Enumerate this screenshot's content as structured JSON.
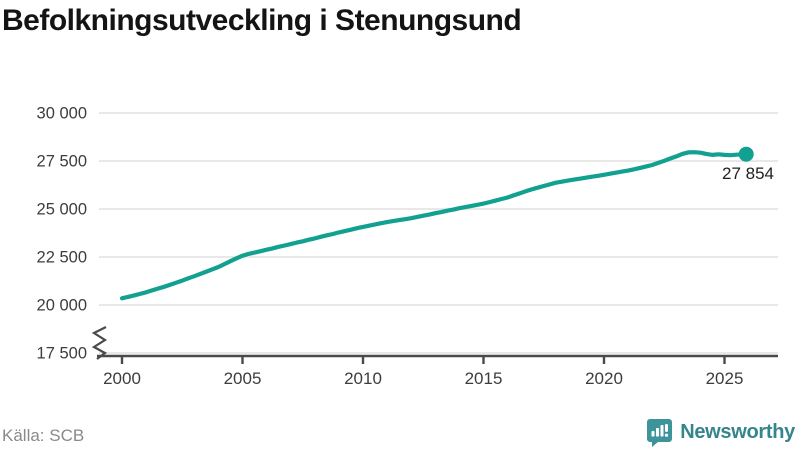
{
  "title": "Befolkningsutveckling i Stenungsund",
  "source": "Källa: SCB",
  "branding": {
    "name": "Newsworthy",
    "icon": "bar-chart-speech-bubble-icon",
    "icon_color": "#3d959b",
    "text_color": "#35858c"
  },
  "chart_data": {
    "type": "line",
    "title": "Befolkningsutveckling i Stenungsund",
    "xlabel": "",
    "ylabel": "",
    "x_axis": {
      "ticks": [
        2000,
        2005,
        2010,
        2015,
        2020,
        2025
      ],
      "tick_labels": [
        "2000",
        "2005",
        "2010",
        "2015",
        "2020",
        "2025"
      ],
      "range": [
        2000,
        2027
      ]
    },
    "y_axis": {
      "ticks": [
        17500,
        20000,
        22500,
        25000,
        27500,
        30000
      ],
      "tick_labels": [
        "17 500",
        "20 000",
        "22 500",
        "25 000",
        "27 500",
        "30 000"
      ],
      "range_shown": [
        17500,
        30000
      ],
      "axis_break_below": 17500,
      "grid": true
    },
    "colors": {
      "line": "#12a191",
      "grid": "#e0e0e0",
      "axis": "#4a4a4a",
      "tick_label": "#3d3d3d",
      "end_label": "#212121"
    },
    "end_point": {
      "label": "27 854",
      "value": 27854
    },
    "series": [
      {
        "name": "Befolkning",
        "points": [
          [
            2000.0,
            20350
          ],
          [
            2000.25,
            20420
          ],
          [
            2000.5,
            20500
          ],
          [
            2000.75,
            20580
          ],
          [
            2001.0,
            20660
          ],
          [
            2001.25,
            20760
          ],
          [
            2001.5,
            20860
          ],
          [
            2001.75,
            20950
          ],
          [
            2002.0,
            21050
          ],
          [
            2002.25,
            21160
          ],
          [
            2002.5,
            21270
          ],
          [
            2002.75,
            21390
          ],
          [
            2003.0,
            21500
          ],
          [
            2003.25,
            21620
          ],
          [
            2003.5,
            21740
          ],
          [
            2003.75,
            21860
          ],
          [
            2004.0,
            21980
          ],
          [
            2004.25,
            22130
          ],
          [
            2004.5,
            22280
          ],
          [
            2004.75,
            22430
          ],
          [
            2005.0,
            22570
          ],
          [
            2005.25,
            22660
          ],
          [
            2005.5,
            22730
          ],
          [
            2005.75,
            22800
          ],
          [
            2006.0,
            22880
          ],
          [
            2006.25,
            22950
          ],
          [
            2006.5,
            23030
          ],
          [
            2006.75,
            23100
          ],
          [
            2007.0,
            23170
          ],
          [
            2007.25,
            23250
          ],
          [
            2007.5,
            23320
          ],
          [
            2007.75,
            23400
          ],
          [
            2008.0,
            23470
          ],
          [
            2008.25,
            23550
          ],
          [
            2008.5,
            23630
          ],
          [
            2008.75,
            23700
          ],
          [
            2009.0,
            23780
          ],
          [
            2009.25,
            23850
          ],
          [
            2009.5,
            23920
          ],
          [
            2009.75,
            24000
          ],
          [
            2010.0,
            24070
          ],
          [
            2010.25,
            24130
          ],
          [
            2010.5,
            24200
          ],
          [
            2010.75,
            24260
          ],
          [
            2011.0,
            24320
          ],
          [
            2011.25,
            24370
          ],
          [
            2011.5,
            24420
          ],
          [
            2011.75,
            24470
          ],
          [
            2012.0,
            24520
          ],
          [
            2012.25,
            24590
          ],
          [
            2012.5,
            24650
          ],
          [
            2012.75,
            24710
          ],
          [
            2013.0,
            24780
          ],
          [
            2013.25,
            24840
          ],
          [
            2013.5,
            24910
          ],
          [
            2013.75,
            24970
          ],
          [
            2014.0,
            25040
          ],
          [
            2014.25,
            25100
          ],
          [
            2014.5,
            25160
          ],
          [
            2014.75,
            25220
          ],
          [
            2015.0,
            25280
          ],
          [
            2015.25,
            25360
          ],
          [
            2015.5,
            25440
          ],
          [
            2015.75,
            25520
          ],
          [
            2016.0,
            25600
          ],
          [
            2016.25,
            25710
          ],
          [
            2016.5,
            25810
          ],
          [
            2016.75,
            25920
          ],
          [
            2017.0,
            26020
          ],
          [
            2017.25,
            26110
          ],
          [
            2017.5,
            26200
          ],
          [
            2017.75,
            26280
          ],
          [
            2018.0,
            26370
          ],
          [
            2018.25,
            26420
          ],
          [
            2018.5,
            26480
          ],
          [
            2018.75,
            26530
          ],
          [
            2019.0,
            26580
          ],
          [
            2019.25,
            26630
          ],
          [
            2019.5,
            26680
          ],
          [
            2019.75,
            26730
          ],
          [
            2020.0,
            26780
          ],
          [
            2020.25,
            26840
          ],
          [
            2020.5,
            26890
          ],
          [
            2020.75,
            26950
          ],
          [
            2021.0,
            27000
          ],
          [
            2021.25,
            27070
          ],
          [
            2021.5,
            27140
          ],
          [
            2021.75,
            27220
          ],
          [
            2022.0,
            27290
          ],
          [
            2022.25,
            27400
          ],
          [
            2022.5,
            27510
          ],
          [
            2022.75,
            27630
          ],
          [
            2023.0,
            27740
          ],
          [
            2023.25,
            27870
          ],
          [
            2023.5,
            27950
          ],
          [
            2023.75,
            27960
          ],
          [
            2024.0,
            27930
          ],
          [
            2024.25,
            27870
          ],
          [
            2024.5,
            27820
          ],
          [
            2024.75,
            27850
          ],
          [
            2025.0,
            27820
          ],
          [
            2025.25,
            27800
          ],
          [
            2025.5,
            27830
          ],
          [
            2025.9,
            27854
          ]
        ]
      }
    ]
  }
}
